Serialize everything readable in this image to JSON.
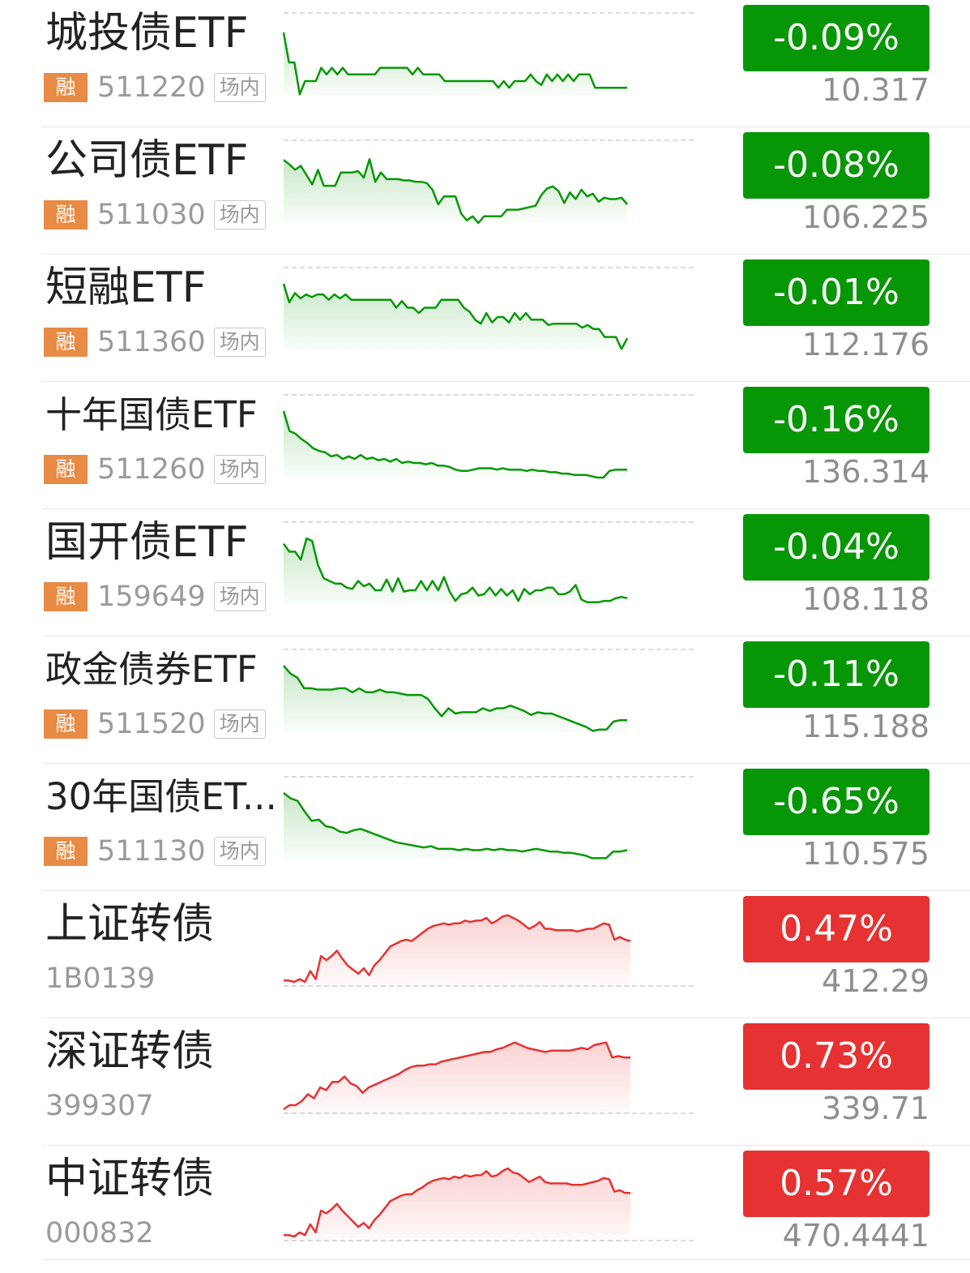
{
  "colors": {
    "down": "#079706",
    "up": "#e63232",
    "badge": "#e88b45"
  },
  "rows": [
    {
      "name": "城投债ETF",
      "code": "511220",
      "badge": "融",
      "tag": "场内",
      "change": "-0.09%",
      "price": "10.317",
      "direction": "down",
      "trend": [
        0.95,
        0.5,
        0.5,
        0.02,
        0.22,
        0.22,
        0.22,
        0.42,
        0.32,
        0.42,
        0.32,
        0.42,
        0.32,
        0.32,
        0.32,
        0.32,
        0.32,
        0.32,
        0.42,
        0.42,
        0.42,
        0.42,
        0.42,
        0.42,
        0.32,
        0.42,
        0.32,
        0.32,
        0.32,
        0.32,
        0.22,
        0.22,
        0.22,
        0.22,
        0.22,
        0.22,
        0.22,
        0.22,
        0.22,
        0.22,
        0.12,
        0.22,
        0.12,
        0.22,
        0.22,
        0.22,
        0.32,
        0.22,
        0.16,
        0.32,
        0.22,
        0.32,
        0.22,
        0.32,
        0.22,
        0.32,
        0.32,
        0.32,
        0.12,
        0.12,
        0.12,
        0.12,
        0.12,
        0.12,
        0.12
      ]
    },
    {
      "name": "公司债ETF",
      "code": "511030",
      "badge": "融",
      "tag": "场内",
      "change": "-0.08%",
      "price": "106.225",
      "direction": "down",
      "trend": [
        0.95,
        0.88,
        0.8,
        0.86,
        0.72,
        0.58,
        0.8,
        0.56,
        0.56,
        0.56,
        0.76,
        0.76,
        0.76,
        0.78,
        0.68,
        0.96,
        0.62,
        0.76,
        0.66,
        0.66,
        0.66,
        0.64,
        0.64,
        0.62,
        0.62,
        0.6,
        0.5,
        0.28,
        0.4,
        0.4,
        0.4,
        0.14,
        0.04,
        0.1,
        0.0,
        0.1,
        0.1,
        0.1,
        0.1,
        0.2,
        0.2,
        0.2,
        0.22,
        0.24,
        0.26,
        0.42,
        0.52,
        0.55,
        0.48,
        0.3,
        0.46,
        0.36,
        0.5,
        0.4,
        0.44,
        0.32,
        0.38,
        0.36,
        0.36,
        0.38,
        0.28
      ]
    },
    {
      "name": "短融ETF",
      "code": "511360",
      "badge": "融",
      "tag": "场内",
      "change": "-0.01%",
      "price": "112.176",
      "direction": "down",
      "trend": [
        1.0,
        0.72,
        0.86,
        0.78,
        0.84,
        0.8,
        0.84,
        0.84,
        0.76,
        0.84,
        0.78,
        0.84,
        0.76,
        0.76,
        0.76,
        0.76,
        0.76,
        0.76,
        0.76,
        0.76,
        0.64,
        0.74,
        0.64,
        0.64,
        0.56,
        0.64,
        0.64,
        0.64,
        0.76,
        0.76,
        0.76,
        0.76,
        0.64,
        0.58,
        0.46,
        0.4,
        0.56,
        0.42,
        0.5,
        0.5,
        0.42,
        0.56,
        0.46,
        0.56,
        0.46,
        0.46,
        0.46,
        0.38,
        0.4,
        0.4,
        0.4,
        0.4,
        0.4,
        0.34,
        0.38,
        0.32,
        0.32,
        0.2,
        0.2,
        0.2,
        0.02,
        0.18
      ]
    },
    {
      "name": "十年国债ETF",
      "code": "511260",
      "badge": "融",
      "tag": "场内",
      "change": "-0.16%",
      "price": "136.314",
      "direction": "down",
      "trend": [
        1.0,
        0.7,
        0.66,
        0.58,
        0.52,
        0.44,
        0.4,
        0.38,
        0.32,
        0.34,
        0.28,
        0.32,
        0.28,
        0.34,
        0.28,
        0.3,
        0.26,
        0.28,
        0.24,
        0.28,
        0.22,
        0.24,
        0.22,
        0.22,
        0.2,
        0.22,
        0.18,
        0.18,
        0.16,
        0.12,
        0.1,
        0.1,
        0.12,
        0.14,
        0.14,
        0.14,
        0.12,
        0.14,
        0.12,
        0.12,
        0.12,
        0.1,
        0.12,
        0.1,
        0.1,
        0.08,
        0.08,
        0.06,
        0.06,
        0.04,
        0.04,
        0.04,
        0.02,
        0.0,
        0.0,
        0.1,
        0.12,
        0.12,
        0.12
      ]
    },
    {
      "name": "国开债ETF",
      "code": "159649",
      "badge": "融",
      "tag": "场内",
      "change": "-0.04%",
      "price": "108.118",
      "direction": "down",
      "trend": [
        0.92,
        0.8,
        0.8,
        0.68,
        1.0,
        0.96,
        0.6,
        0.4,
        0.36,
        0.32,
        0.32,
        0.26,
        0.24,
        0.36,
        0.28,
        0.32,
        0.22,
        0.22,
        0.38,
        0.2,
        0.4,
        0.2,
        0.22,
        0.22,
        0.36,
        0.22,
        0.36,
        0.22,
        0.42,
        0.2,
        0.06,
        0.16,
        0.18,
        0.26,
        0.14,
        0.16,
        0.26,
        0.14,
        0.24,
        0.14,
        0.22,
        0.06,
        0.24,
        0.16,
        0.22,
        0.22,
        0.26,
        0.26,
        0.16,
        0.16,
        0.2,
        0.3,
        0.08,
        0.04,
        0.04,
        0.04,
        0.06,
        0.06,
        0.1,
        0.12,
        0.1
      ]
    },
    {
      "name": "政金债券ETF",
      "code": "511520",
      "badge": "融",
      "tag": "场内",
      "change": "-0.11%",
      "price": "115.188",
      "direction": "down",
      "trend": [
        1.0,
        0.88,
        0.82,
        0.66,
        0.66,
        0.64,
        0.64,
        0.64,
        0.66,
        0.66,
        0.6,
        0.66,
        0.6,
        0.6,
        0.64,
        0.6,
        0.6,
        0.58,
        0.56,
        0.56,
        0.56,
        0.5,
        0.36,
        0.24,
        0.36,
        0.28,
        0.3,
        0.3,
        0.3,
        0.36,
        0.32,
        0.36,
        0.36,
        0.4,
        0.36,
        0.32,
        0.26,
        0.3,
        0.28,
        0.28,
        0.24,
        0.2,
        0.16,
        0.12,
        0.08,
        0.02,
        0.04,
        0.04,
        0.16,
        0.18,
        0.18
      ]
    },
    {
      "name": "30年国债ET...",
      "code": "511130",
      "badge": "融",
      "tag": "场内",
      "change": "-0.65%",
      "price": "110.575",
      "direction": "down",
      "trend": [
        1.0,
        0.92,
        0.88,
        0.72,
        0.58,
        0.6,
        0.5,
        0.48,
        0.42,
        0.4,
        0.44,
        0.46,
        0.42,
        0.38,
        0.34,
        0.3,
        0.26,
        0.24,
        0.22,
        0.2,
        0.18,
        0.2,
        0.16,
        0.16,
        0.16,
        0.14,
        0.16,
        0.14,
        0.14,
        0.16,
        0.14,
        0.16,
        0.14,
        0.14,
        0.12,
        0.14,
        0.16,
        0.14,
        0.12,
        0.12,
        0.1,
        0.1,
        0.08,
        0.06,
        0.02,
        0.02,
        0.02,
        0.12,
        0.12,
        0.14
      ]
    },
    {
      "name": "上证转债",
      "code": "1B0139",
      "badge": "",
      "tag": "",
      "change": "0.47%",
      "price": "412.29",
      "direction": "up",
      "trend": [
        0.02,
        0.02,
        0.0,
        0.04,
        0.0,
        0.16,
        0.04,
        0.38,
        0.32,
        0.38,
        0.46,
        0.34,
        0.24,
        0.18,
        0.12,
        0.2,
        0.1,
        0.24,
        0.32,
        0.42,
        0.52,
        0.56,
        0.6,
        0.62,
        0.6,
        0.66,
        0.72,
        0.78,
        0.82,
        0.84,
        0.86,
        0.84,
        0.86,
        0.86,
        0.9,
        0.88,
        0.9,
        0.9,
        0.94,
        0.86,
        0.9,
        0.96,
        0.98,
        0.94,
        0.9,
        0.84,
        0.78,
        0.82,
        0.88,
        0.78,
        0.78,
        0.76,
        0.76,
        0.76,
        0.76,
        0.74,
        0.76,
        0.78,
        0.78,
        0.82,
        0.86,
        0.84,
        0.62,
        0.66,
        0.62,
        0.6
      ]
    },
    {
      "name": "深证转债",
      "code": "399307",
      "badge": "",
      "tag": "",
      "change": "0.73%",
      "price": "339.71",
      "direction": "up",
      "trend": [
        0.0,
        0.06,
        0.06,
        0.12,
        0.22,
        0.16,
        0.32,
        0.28,
        0.4,
        0.4,
        0.48,
        0.38,
        0.34,
        0.24,
        0.32,
        0.36,
        0.4,
        0.44,
        0.48,
        0.52,
        0.58,
        0.62,
        0.64,
        0.64,
        0.66,
        0.66,
        0.7,
        0.72,
        0.74,
        0.76,
        0.78,
        0.8,
        0.82,
        0.84,
        0.84,
        0.88,
        0.9,
        0.94,
        0.98,
        0.94,
        0.9,
        0.88,
        0.86,
        0.84,
        0.86,
        0.86,
        0.86,
        0.86,
        0.88,
        0.9,
        0.88,
        0.94,
        0.96,
        0.98,
        0.76,
        0.78,
        0.76,
        0.76
      ]
    },
    {
      "name": "中证转债",
      "code": "000832",
      "badge": "",
      "tag": "",
      "change": "0.57%",
      "price": "470.4441",
      "direction": "up",
      "trend": [
        0.02,
        0.02,
        0.0,
        0.06,
        0.02,
        0.18,
        0.06,
        0.38,
        0.34,
        0.4,
        0.48,
        0.38,
        0.3,
        0.22,
        0.14,
        0.2,
        0.12,
        0.24,
        0.32,
        0.42,
        0.52,
        0.56,
        0.6,
        0.62,
        0.62,
        0.68,
        0.72,
        0.78,
        0.82,
        0.84,
        0.86,
        0.84,
        0.88,
        0.86,
        0.9,
        0.88,
        0.9,
        0.9,
        0.96,
        0.88,
        0.9,
        0.96,
        1.0,
        0.94,
        0.92,
        0.86,
        0.8,
        0.84,
        0.88,
        0.8,
        0.78,
        0.78,
        0.78,
        0.78,
        0.76,
        0.76,
        0.76,
        0.78,
        0.8,
        0.82,
        0.86,
        0.84,
        0.66,
        0.68,
        0.64,
        0.64
      ]
    }
  ]
}
